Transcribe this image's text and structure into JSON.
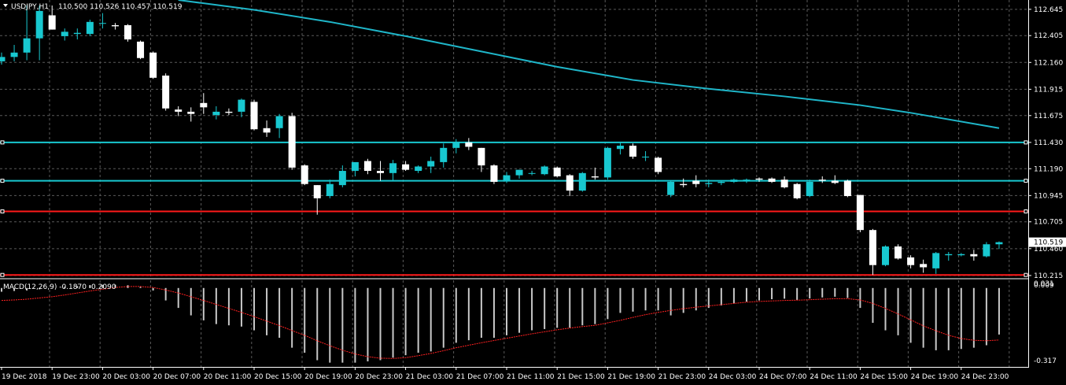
{
  "header": {
    "symbol_label": "USDJPY,H1",
    "ohlc_label": "110.500 110.526 110.457 110.519",
    "macd_label": "MACD(12,26,9) -0.1870 -0.2090"
  },
  "colors": {
    "background": "#000000",
    "grid": "#5a5a5a",
    "axis": "#ffffff",
    "bull": "#18c8d0",
    "bear": "#ffffff",
    "ma": "#1fb6c9",
    "support_cyan": "#18c8d0",
    "level_red": "#ff1a1a",
    "macd_hist": "#c8c8c8",
    "macd_signal": "#ff2020"
  },
  "chart_data": {
    "type": "candlestick",
    "symbol": "USDJPY",
    "timeframe": "H1",
    "price_axis": {
      "ylim": [
        110.2,
        112.73
      ],
      "ticks": [
        "112.645",
        "112.405",
        "112.160",
        "111.915",
        "111.675",
        "111.430",
        "111.190",
        "110.945",
        "110.705",
        "110.460",
        "110.215"
      ]
    },
    "current_price": "110.519",
    "time_axis_labels": [
      "19 Dec 2018",
      "19 Dec 23:00",
      "20 Dec 03:00",
      "20 Dec 07:00",
      "20 Dec 11:00",
      "20 Dec 15:00",
      "20 Dec 19:00",
      "20 Dec 23:00",
      "21 Dec 03:00",
      "21 Dec 07:00",
      "21 Dec 11:00",
      "21 Dec 15:00",
      "21 Dec 19:00",
      "21 Dec 23:00",
      "24 Dec 03:00",
      "24 Dec 07:00",
      "24 Dec 11:00",
      "24 Dec 15:00",
      "24 Dec 19:00",
      "24 Dec 23:00"
    ],
    "candles": [
      {
        "o": 112.17,
        "h": 112.25,
        "l": 112.14,
        "c": 112.21
      },
      {
        "o": 112.21,
        "h": 112.32,
        "l": 112.17,
        "c": 112.25
      },
      {
        "o": 112.25,
        "h": 112.68,
        "l": 112.18,
        "c": 112.38
      },
      {
        "o": 112.38,
        "h": 112.68,
        "l": 112.18,
        "c": 112.63
      },
      {
        "o": 112.59,
        "h": 112.68,
        "l": 112.46,
        "c": 112.46
      },
      {
        "o": 112.4,
        "h": 112.47,
        "l": 112.36,
        "c": 112.44
      },
      {
        "o": 112.42,
        "h": 112.47,
        "l": 112.37,
        "c": 112.43
      },
      {
        "o": 112.42,
        "h": 112.55,
        "l": 112.4,
        "c": 112.53
      },
      {
        "o": 112.52,
        "h": 112.61,
        "l": 112.47,
        "c": 112.52
      },
      {
        "o": 112.5,
        "h": 112.52,
        "l": 112.46,
        "c": 112.49
      },
      {
        "o": 112.5,
        "h": 112.51,
        "l": 112.35,
        "c": 112.37
      },
      {
        "o": 112.35,
        "h": 112.36,
        "l": 112.19,
        "c": 112.2
      },
      {
        "o": 112.25,
        "h": 112.26,
        "l": 112.01,
        "c": 112.02
      },
      {
        "o": 112.04,
        "h": 112.06,
        "l": 111.72,
        "c": 111.74
      },
      {
        "o": 111.73,
        "h": 111.76,
        "l": 111.67,
        "c": 111.71
      },
      {
        "o": 111.71,
        "h": 111.75,
        "l": 111.62,
        "c": 111.69
      },
      {
        "o": 111.79,
        "h": 111.88,
        "l": 111.69,
        "c": 111.75
      },
      {
        "o": 111.68,
        "h": 111.76,
        "l": 111.64,
        "c": 111.71
      },
      {
        "o": 111.71,
        "h": 111.74,
        "l": 111.68,
        "c": 111.7
      },
      {
        "o": 111.71,
        "h": 111.83,
        "l": 111.66,
        "c": 111.82
      },
      {
        "o": 111.8,
        "h": 111.82,
        "l": 111.54,
        "c": 111.55
      },
      {
        "o": 111.56,
        "h": 111.63,
        "l": 111.48,
        "c": 111.52
      },
      {
        "o": 111.56,
        "h": 111.69,
        "l": 111.47,
        "c": 111.67
      },
      {
        "o": 111.67,
        "h": 111.7,
        "l": 111.18,
        "c": 111.2
      },
      {
        "o": 111.22,
        "h": 111.23,
        "l": 111.04,
        "c": 111.05
      },
      {
        "o": 111.04,
        "h": 111.04,
        "l": 110.77,
        "c": 110.92
      },
      {
        "o": 110.94,
        "h": 111.09,
        "l": 110.92,
        "c": 111.05
      },
      {
        "o": 111.04,
        "h": 111.22,
        "l": 111.02,
        "c": 111.17
      },
      {
        "o": 111.17,
        "h": 111.24,
        "l": 111.12,
        "c": 111.25
      },
      {
        "o": 111.26,
        "h": 111.28,
        "l": 111.14,
        "c": 111.17
      },
      {
        "o": 111.17,
        "h": 111.26,
        "l": 111.08,
        "c": 111.15
      },
      {
        "o": 111.15,
        "h": 111.27,
        "l": 111.08,
        "c": 111.24
      },
      {
        "o": 111.23,
        "h": 111.26,
        "l": 111.17,
        "c": 111.18
      },
      {
        "o": 111.17,
        "h": 111.22,
        "l": 111.15,
        "c": 111.21
      },
      {
        "o": 111.21,
        "h": 111.3,
        "l": 111.15,
        "c": 111.26
      },
      {
        "o": 111.25,
        "h": 111.42,
        "l": 111.2,
        "c": 111.38
      },
      {
        "o": 111.38,
        "h": 111.46,
        "l": 111.33,
        "c": 111.43
      },
      {
        "o": 111.43,
        "h": 111.47,
        "l": 111.36,
        "c": 111.39
      },
      {
        "o": 111.38,
        "h": 111.38,
        "l": 111.16,
        "c": 111.22
      },
      {
        "o": 111.22,
        "h": 111.23,
        "l": 111.05,
        "c": 111.07
      },
      {
        "o": 111.08,
        "h": 111.16,
        "l": 111.06,
        "c": 111.13
      },
      {
        "o": 111.13,
        "h": 111.18,
        "l": 111.1,
        "c": 111.18
      },
      {
        "o": 111.15,
        "h": 111.17,
        "l": 111.13,
        "c": 111.15
      },
      {
        "o": 111.14,
        "h": 111.22,
        "l": 111.13,
        "c": 111.21
      },
      {
        "o": 111.2,
        "h": 111.21,
        "l": 111.11,
        "c": 111.12
      },
      {
        "o": 111.13,
        "h": 111.14,
        "l": 110.94,
        "c": 110.99
      },
      {
        "o": 110.99,
        "h": 111.16,
        "l": 110.98,
        "c": 111.15
      },
      {
        "o": 111.12,
        "h": 111.2,
        "l": 111.09,
        "c": 111.11
      },
      {
        "o": 111.11,
        "h": 111.39,
        "l": 111.09,
        "c": 111.38
      },
      {
        "o": 111.37,
        "h": 111.43,
        "l": 111.32,
        "c": 111.4
      },
      {
        "o": 111.4,
        "h": 111.42,
        "l": 111.28,
        "c": 111.3
      },
      {
        "o": 111.3,
        "h": 111.35,
        "l": 111.26,
        "c": 111.3
      },
      {
        "o": 111.29,
        "h": 111.3,
        "l": 111.14,
        "c": 111.16
      },
      {
        "o": 110.95,
        "h": 111.08,
        "l": 110.93,
        "c": 111.07
      },
      {
        "o": 111.05,
        "h": 111.1,
        "l": 111.02,
        "c": 111.04
      },
      {
        "o": 111.08,
        "h": 111.13,
        "l": 111.02,
        "c": 111.05
      },
      {
        "o": 111.05,
        "h": 111.09,
        "l": 111.02,
        "c": 111.06
      },
      {
        "o": 111.06,
        "h": 111.08,
        "l": 111.04,
        "c": 111.07
      },
      {
        "o": 111.07,
        "h": 111.1,
        "l": 111.06,
        "c": 111.09
      },
      {
        "o": 111.08,
        "h": 111.1,
        "l": 111.06,
        "c": 111.09
      },
      {
        "o": 111.1,
        "h": 111.11,
        "l": 111.07,
        "c": 111.09
      },
      {
        "o": 111.1,
        "h": 111.11,
        "l": 111.06,
        "c": 111.07
      },
      {
        "o": 111.09,
        "h": 111.12,
        "l": 111.01,
        "c": 111.02
      },
      {
        "o": 111.05,
        "h": 111.06,
        "l": 110.91,
        "c": 110.92
      },
      {
        "o": 110.94,
        "h": 111.09,
        "l": 110.93,
        "c": 111.07
      },
      {
        "o": 111.09,
        "h": 111.12,
        "l": 111.06,
        "c": 111.08
      },
      {
        "o": 111.08,
        "h": 111.13,
        "l": 111.05,
        "c": 111.06
      },
      {
        "o": 111.08,
        "h": 111.09,
        "l": 110.93,
        "c": 110.94
      },
      {
        "o": 110.95,
        "h": 110.95,
        "l": 110.61,
        "c": 110.63
      },
      {
        "o": 110.63,
        "h": 110.64,
        "l": 110.22,
        "c": 110.31
      },
      {
        "o": 110.31,
        "h": 110.49,
        "l": 110.3,
        "c": 110.48
      },
      {
        "o": 110.48,
        "h": 110.5,
        "l": 110.36,
        "c": 110.37
      },
      {
        "o": 110.38,
        "h": 110.4,
        "l": 110.28,
        "c": 110.31
      },
      {
        "o": 110.32,
        "h": 110.36,
        "l": 110.24,
        "c": 110.29
      },
      {
        "o": 110.28,
        "h": 110.43,
        "l": 110.23,
        "c": 110.42
      },
      {
        "o": 110.4,
        "h": 110.43,
        "l": 110.35,
        "c": 110.41
      },
      {
        "o": 110.4,
        "h": 110.42,
        "l": 110.39,
        "c": 110.41
      },
      {
        "o": 110.41,
        "h": 110.45,
        "l": 110.35,
        "c": 110.39
      },
      {
        "o": 110.39,
        "h": 110.52,
        "l": 110.38,
        "c": 110.5
      },
      {
        "o": 110.5,
        "h": 110.526,
        "l": 110.457,
        "c": 110.519
      }
    ],
    "moving_average": [
      {
        "i": 14,
        "v": 112.73
      },
      {
        "i": 20,
        "v": 112.64
      },
      {
        "i": 26,
        "v": 112.53
      },
      {
        "i": 32,
        "v": 112.4
      },
      {
        "i": 38,
        "v": 112.26
      },
      {
        "i": 44,
        "v": 112.12
      },
      {
        "i": 50,
        "v": 112.0
      },
      {
        "i": 56,
        "v": 111.92
      },
      {
        "i": 62,
        "v": 111.85
      },
      {
        "i": 68,
        "v": 111.77
      },
      {
        "i": 72,
        "v": 111.7
      },
      {
        "i": 79,
        "v": 111.56
      }
    ],
    "horizontal_levels": [
      {
        "price": 111.43,
        "color": "#18c8d0"
      },
      {
        "price": 111.08,
        "color": "#18c8d0"
      },
      {
        "price": 110.8,
        "color": "#ff1a1a"
      },
      {
        "price": 110.22,
        "color": "#ff1a1a"
      }
    ],
    "macd": {
      "ylim": [
        -0.317,
        0.031
      ],
      "ticks": [
        "0.031",
        "0.009",
        "-0.317"
      ],
      "histogram": [
        -0.015,
        -0.012,
        -0.01,
        -0.005,
        0.0,
        0.005,
        0.008,
        0.012,
        0.013,
        0.013,
        0.011,
        0.005,
        -0.01,
        -0.05,
        -0.08,
        -0.11,
        -0.13,
        -0.145,
        -0.15,
        -0.155,
        -0.17,
        -0.19,
        -0.2,
        -0.24,
        -0.26,
        -0.29,
        -0.3,
        -0.3,
        -0.3,
        -0.295,
        -0.29,
        -0.28,
        -0.27,
        -0.26,
        -0.255,
        -0.24,
        -0.22,
        -0.21,
        -0.2,
        -0.2,
        -0.19,
        -0.18,
        -0.17,
        -0.165,
        -0.16,
        -0.16,
        -0.15,
        -0.145,
        -0.125,
        -0.1,
        -0.095,
        -0.09,
        -0.09,
        -0.11,
        -0.1,
        -0.09,
        -0.08,
        -0.07,
        -0.062,
        -0.055,
        -0.05,
        -0.045,
        -0.043,
        -0.048,
        -0.042,
        -0.038,
        -0.035,
        -0.04,
        -0.08,
        -0.14,
        -0.17,
        -0.19,
        -0.22,
        -0.24,
        -0.25,
        -0.25,
        -0.245,
        -0.24,
        -0.23,
        -0.187
      ],
      "signal": [
        -0.05,
        -0.048,
        -0.045,
        -0.04,
        -0.035,
        -0.028,
        -0.02,
        -0.012,
        -0.005,
        0.002,
        0.006,
        0.006,
        0.002,
        -0.008,
        -0.02,
        -0.035,
        -0.05,
        -0.066,
        -0.082,
        -0.098,
        -0.115,
        -0.133,
        -0.151,
        -0.171,
        -0.19,
        -0.212,
        -0.232,
        -0.25,
        -0.265,
        -0.276,
        -0.282,
        -0.283,
        -0.28,
        -0.272,
        -0.263,
        -0.252,
        -0.24,
        -0.23,
        -0.22,
        -0.211,
        -0.202,
        -0.193,
        -0.184,
        -0.176,
        -0.168,
        -0.161,
        -0.155,
        -0.15,
        -0.14,
        -0.13,
        -0.118,
        -0.107,
        -0.098,
        -0.09,
        -0.083,
        -0.077,
        -0.072,
        -0.067,
        -0.062,
        -0.057,
        -0.054,
        -0.052,
        -0.05,
        -0.049,
        -0.047,
        -0.045,
        -0.043,
        -0.043,
        -0.048,
        -0.062,
        -0.082,
        -0.104,
        -0.128,
        -0.152,
        -0.172,
        -0.19,
        -0.203,
        -0.21,
        -0.212,
        -0.209
      ]
    }
  }
}
